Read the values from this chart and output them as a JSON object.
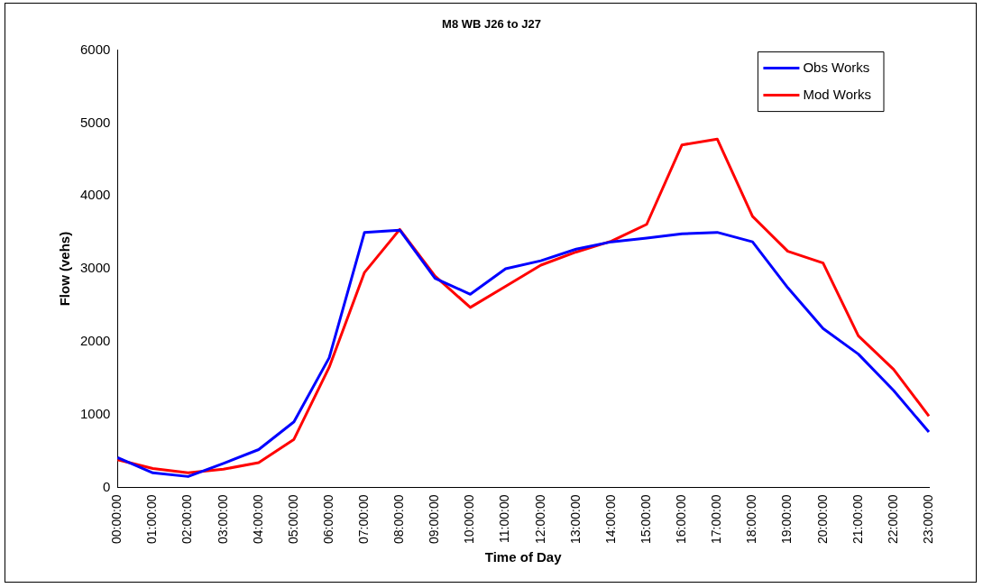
{
  "chart_data": {
    "type": "line",
    "title": "M8 WB J26 to J27",
    "xlabel": "Time of Day",
    "ylabel": "Flow (vehs)",
    "categories": [
      "00:00:00",
      "01:00:00",
      "02:00:00",
      "03:00:00",
      "04:00:00",
      "05:00:00",
      "06:00:00",
      "07:00:00",
      "08:00:00",
      "09:00:00",
      "10:00:00",
      "11:00:00",
      "12:00:00",
      "13:00:00",
      "14:00:00",
      "15:00:00",
      "16:00:00",
      "17:00:00",
      "18:00:00",
      "19:00:00",
      "20:00:00",
      "21:00:00",
      "22:00:00",
      "23:00:00"
    ],
    "series": [
      {
        "name": "Obs Works",
        "color": "#0000ff",
        "values": [
          410,
          200,
          150,
          330,
          520,
          900,
          1780,
          3500,
          3530,
          2870,
          2650,
          3000,
          3110,
          3270,
          3370,
          3420,
          3480,
          3500,
          3370,
          2740,
          2180,
          1830,
          1330,
          760
        ]
      },
      {
        "name": "Mod Works",
        "color": "#ff0000",
        "values": [
          380,
          260,
          200,
          250,
          340,
          660,
          1650,
          2950,
          3540,
          2900,
          2470,
          2760,
          3050,
          3230,
          3380,
          3610,
          4700,
          4780,
          3720,
          3240,
          3080,
          2080,
          1620,
          980
        ]
      }
    ],
    "ylim": [
      0,
      6000
    ],
    "yticks": [
      0,
      1000,
      2000,
      3000,
      4000,
      5000,
      6000
    ],
    "grid": false,
    "legend": "top right",
    "marker": "none",
    "line_style": "solid"
  }
}
